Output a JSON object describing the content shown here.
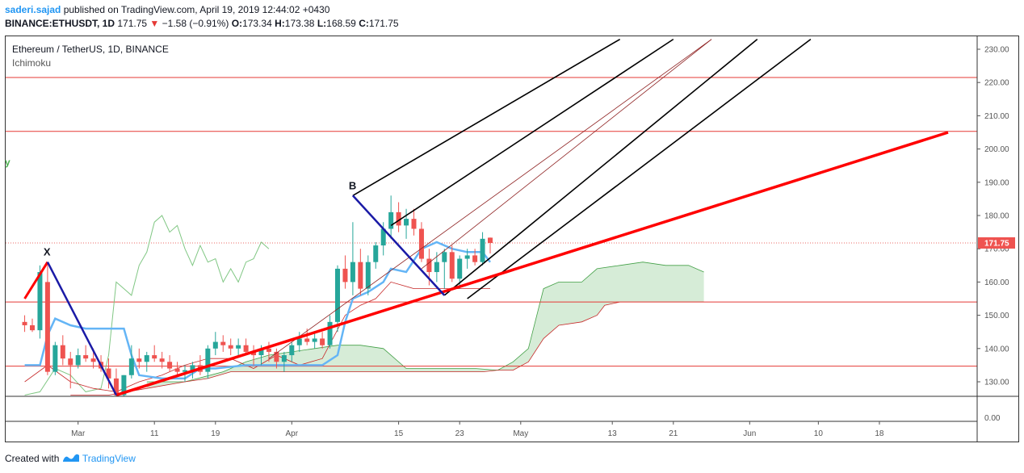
{
  "header": {
    "author": "saderi.sajad",
    "published_text": " published on TradingView.com, April 19, 2019 12:44:02 +0430",
    "symbol": "BINANCE:ETHUSDT, 1D",
    "last": "171.75",
    "change": "−1.58 (−0.91%)",
    "open_label": "O:",
    "open": "173.34",
    "high_label": "H:",
    "high": "173.38",
    "low_label": "L:",
    "low": "168.59",
    "close_label": "C:",
    "close": "171.75"
  },
  "legend": {
    "title": "Ethereum / TetherUS, 1D, BINANCE",
    "indicator": "Ichimoku",
    "stray": "y"
  },
  "footer": {
    "created_with": "Created with",
    "brand": "TradingView"
  },
  "colors": {
    "up": "#26a69a",
    "down": "#ef5350",
    "tenkan": "#64b5f6",
    "kijun_span_b": "#c62828",
    "chikou": "#81c784",
    "cloud_green": "#c8e6c9",
    "cloud_red": "#ffcdd2",
    "fork": "#000000",
    "trend": "#ff0000",
    "xab": "#1a1aa6"
  },
  "chart_data": {
    "type": "candlestick",
    "title": "Ethereum / TetherUS, 1D, BINANCE",
    "ylim": [
      126,
      233
    ],
    "y_ticks": [
      "230.00",
      "220.00",
      "210.00",
      "200.00",
      "190.00",
      "180.00",
      "170.00",
      "160.00",
      "150.00",
      "140.00",
      "130.00"
    ],
    "volume_tick": "0.00",
    "x_tick_labels": [
      "Mar",
      "11",
      "19",
      "Apr",
      "15",
      "23",
      "May",
      "13",
      "21",
      "Jun",
      "10",
      "18"
    ],
    "x_tick_days": [
      6,
      16,
      24,
      34,
      48,
      56,
      64,
      76,
      84,
      94,
      103,
      111
    ],
    "last_price_label": "171.75",
    "horizontal_levels": [
      221.5,
      205.3,
      154.0,
      134.7
    ],
    "pattern_labels": [
      {
        "text": "X",
        "day": 2,
        "price": 166
      },
      {
        "text": "B",
        "day": 42,
        "price": 186
      }
    ],
    "candles": [
      [
        -1,
        148,
        150,
        145,
        147
      ],
      [
        0,
        147,
        149,
        145,
        145.5
      ],
      [
        1,
        145.5,
        165,
        143,
        163
      ],
      [
        2,
        160,
        166,
        132,
        133
      ],
      [
        3,
        133,
        142,
        132,
        141
      ],
      [
        4,
        141,
        144,
        135,
        137
      ],
      [
        5,
        137,
        139,
        128,
        135
      ],
      [
        6,
        135,
        140,
        134,
        138
      ],
      [
        7,
        138,
        141,
        136,
        137
      ],
      [
        8,
        137,
        140,
        134,
        136
      ],
      [
        9,
        136,
        138,
        133,
        134
      ],
      [
        10,
        134,
        137,
        128,
        131
      ],
      [
        11,
        131,
        134,
        125,
        126
      ],
      [
        12,
        126,
        132,
        125,
        132
      ],
      [
        13,
        132,
        141,
        131,
        137
      ],
      [
        14,
        137,
        140,
        134,
        136
      ],
      [
        15,
        136,
        139,
        133,
        138
      ],
      [
        16,
        138,
        141,
        136,
        137
      ],
      [
        17,
        137,
        139,
        134,
        136
      ],
      [
        18,
        136,
        138,
        133,
        134
      ],
      [
        19,
        134,
        136,
        132,
        133
      ],
      [
        20,
        133,
        135,
        130,
        133.5
      ],
      [
        21,
        133.5,
        136,
        131,
        135
      ],
      [
        22,
        135,
        138,
        132,
        133
      ],
      [
        23,
        133,
        141,
        131,
        140
      ],
      [
        24,
        140,
        145,
        138,
        142
      ],
      [
        25,
        142,
        144,
        139,
        141
      ],
      [
        26,
        141,
        143,
        138,
        140
      ],
      [
        27,
        140,
        143,
        138,
        141
      ],
      [
        28,
        141,
        143,
        138,
        139
      ],
      [
        29,
        139,
        141,
        135,
        138
      ],
      [
        30,
        138,
        141,
        135,
        140
      ],
      [
        31,
        140,
        142,
        136,
        139
      ],
      [
        32,
        139,
        140,
        134,
        136
      ],
      [
        33,
        136,
        139,
        133,
        138
      ],
      [
        34,
        138,
        142,
        136,
        141
      ],
      [
        35,
        141,
        145,
        139,
        143
      ],
      [
        36,
        143,
        146,
        141,
        142
      ],
      [
        37,
        142,
        145,
        140,
        143
      ],
      [
        38,
        143,
        145,
        140,
        141
      ],
      [
        39,
        141,
        150,
        140,
        148
      ],
      [
        40,
        148,
        165,
        145,
        164
      ],
      [
        41,
        164,
        168,
        158,
        160
      ],
      [
        42,
        160,
        178,
        156,
        166
      ],
      [
        43,
        166,
        170,
        156,
        158
      ],
      [
        44,
        158,
        168,
        156,
        166
      ],
      [
        45,
        166,
        172,
        164,
        171
      ],
      [
        46,
        171,
        178,
        168,
        176
      ],
      [
        47,
        176,
        186,
        173,
        181
      ],
      [
        48,
        181,
        184,
        175,
        177
      ],
      [
        49,
        177,
        182,
        173,
        179
      ],
      [
        50,
        179,
        182,
        174,
        176
      ],
      [
        51,
        176,
        178,
        166,
        167
      ],
      [
        52,
        167,
        170,
        159,
        163
      ],
      [
        53,
        163,
        169,
        160,
        166
      ],
      [
        54,
        166,
        170,
        158,
        169
      ],
      [
        55,
        169,
        171,
        160,
        161
      ],
      [
        56,
        161,
        168,
        158,
        167
      ],
      [
        57,
        167,
        170,
        164,
        168
      ],
      [
        58,
        168,
        170,
        165,
        166
      ],
      [
        59,
        166,
        175,
        165,
        173
      ],
      [
        60,
        173.34,
        173.38,
        168.59,
        171.75
      ]
    ],
    "tenkan_sen": [
      [
        -1,
        135
      ],
      [
        1,
        135
      ],
      [
        2,
        144
      ],
      [
        3,
        149
      ],
      [
        5,
        147
      ],
      [
        7,
        146
      ],
      [
        9,
        146
      ],
      [
        10,
        146
      ],
      [
        12,
        146
      ],
      [
        13,
        138
      ],
      [
        14,
        132
      ],
      [
        17,
        131
      ],
      [
        20,
        131
      ],
      [
        22,
        134
      ],
      [
        24,
        134
      ],
      [
        28,
        135
      ],
      [
        32,
        135
      ],
      [
        34,
        135
      ],
      [
        38,
        135
      ],
      [
        40,
        138
      ],
      [
        41,
        148
      ],
      [
        42,
        155
      ],
      [
        44,
        157
      ],
      [
        46,
        160
      ],
      [
        47,
        164
      ],
      [
        49,
        163
      ],
      [
        51,
        170
      ],
      [
        53,
        172
      ],
      [
        55,
        170
      ],
      [
        57,
        169
      ],
      [
        59,
        169
      ],
      [
        60,
        166
      ]
    ],
    "kijun_sen": [
      [
        -1,
        139
      ],
      [
        1,
        142
      ],
      [
        3,
        136
      ],
      [
        5,
        131
      ],
      [
        8,
        129
      ],
      [
        11,
        126
      ],
      [
        13,
        130
      ],
      [
        15,
        133
      ],
      [
        17,
        136
      ],
      [
        20,
        141
      ],
      [
        23,
        144
      ],
      [
        26,
        144
      ],
      [
        28,
        140
      ],
      [
        30,
        138
      ],
      [
        32,
        137
      ],
      [
        34,
        138
      ],
      [
        36,
        142
      ],
      [
        38,
        144
      ],
      [
        40,
        147
      ],
      [
        42,
        152
      ],
      [
        44,
        153
      ],
      [
        46,
        157
      ],
      [
        48,
        157
      ],
      [
        50,
        158
      ],
      [
        52,
        158
      ],
      [
        54,
        158
      ],
      [
        56,
        158
      ],
      [
        58,
        158
      ],
      [
        60,
        158
      ]
    ],
    "chikou_span": [
      [
        -1,
        126
      ],
      [
        1,
        127
      ],
      [
        3,
        134
      ],
      [
        5,
        132
      ],
      [
        7,
        127
      ],
      [
        9,
        128
      ],
      [
        10,
        138
      ],
      [
        11,
        160
      ],
      [
        12,
        158
      ],
      [
        13,
        156
      ],
      [
        14,
        165
      ],
      [
        15,
        169
      ],
      [
        16,
        178
      ],
      [
        17,
        180
      ],
      [
        18,
        175
      ],
      [
        19,
        177
      ],
      [
        20,
        170
      ],
      [
        21,
        165
      ],
      [
        22,
        171
      ],
      [
        23,
        166
      ],
      [
        24,
        167
      ],
      [
        25,
        160
      ],
      [
        26,
        164
      ],
      [
        27,
        160
      ],
      [
        28,
        166
      ],
      [
        29,
        167
      ],
      [
        30,
        172
      ],
      [
        31,
        170
      ]
    ],
    "senkou_span_a": [
      [
        15,
        130
      ],
      [
        20,
        130
      ],
      [
        25,
        133
      ],
      [
        28,
        136
      ],
      [
        31,
        138
      ],
      [
        34,
        139
      ],
      [
        37,
        140
      ],
      [
        40,
        141
      ],
      [
        43,
        141
      ],
      [
        46,
        140
      ],
      [
        49,
        134
      ],
      [
        52,
        134
      ],
      [
        55,
        134
      ],
      [
        58,
        134
      ],
      [
        61,
        133.5
      ],
      [
        63,
        136
      ],
      [
        65,
        140
      ],
      [
        67,
        158
      ],
      [
        69,
        160
      ],
      [
        72,
        160
      ],
      [
        74,
        164
      ],
      [
        77,
        165
      ],
      [
        80,
        166
      ],
      [
        83,
        165
      ],
      [
        86,
        165
      ],
      [
        88,
        163
      ]
    ],
    "senkou_span_b": [
      [
        5,
        126
      ],
      [
        10,
        126
      ],
      [
        15,
        128
      ],
      [
        20,
        130
      ],
      [
        23,
        131
      ],
      [
        26,
        133
      ],
      [
        29,
        133
      ],
      [
        32,
        133
      ],
      [
        35,
        133
      ],
      [
        38,
        133
      ],
      [
        41,
        133
      ],
      [
        44,
        133
      ],
      [
        47,
        133
      ],
      [
        50,
        133
      ],
      [
        53,
        133
      ],
      [
        56,
        133
      ],
      [
        59,
        133
      ],
      [
        61,
        133.5
      ],
      [
        63,
        133.5
      ],
      [
        65,
        136
      ],
      [
        67,
        143
      ],
      [
        69,
        147
      ],
      [
        72,
        148
      ],
      [
        74,
        150
      ],
      [
        75,
        153
      ],
      [
        77,
        154
      ],
      [
        80,
        154
      ],
      [
        83,
        154
      ],
      [
        86,
        154
      ],
      [
        88,
        154
      ]
    ],
    "kijun_overlay_red": [
      [
        -1,
        130
      ],
      [
        2,
        135
      ],
      [
        5,
        130
      ],
      [
        8,
        128
      ],
      [
        11,
        127
      ],
      [
        14,
        130
      ],
      [
        17,
        132
      ],
      [
        20,
        135
      ],
      [
        23,
        137
      ],
      [
        26,
        137
      ],
      [
        29,
        134
      ],
      [
        32,
        138
      ],
      [
        35,
        135
      ],
      [
        38,
        137
      ],
      [
        41,
        150
      ],
      [
        43,
        153
      ],
      [
        45,
        155
      ],
      [
        47,
        160
      ],
      [
        50,
        158
      ],
      [
        53,
        158
      ],
      [
        56,
        158
      ],
      [
        60,
        158
      ]
    ],
    "pitchfork_lines": [
      {
        "from": [
          42,
          186
        ],
        "to": [
          77,
          233
        ],
        "style": "black"
      },
      {
        "from": [
          47,
          177
        ],
        "to": [
          84,
          233
        ],
        "style": "black"
      },
      {
        "from": [
          51,
          164
        ],
        "to": [
          89,
          233
        ],
        "style": "thin-red"
      },
      {
        "from": [
          54,
          156
        ],
        "to": [
          95,
          233
        ],
        "style": "black"
      },
      {
        "from": [
          57,
          155
        ],
        "to": [
          102,
          233
        ],
        "style": "black"
      }
    ],
    "median_thin_line": {
      "from": [
        31,
        137
      ],
      "to": [
        89,
        233
      ]
    },
    "trend_line": {
      "from": [
        11,
        126
      ],
      "to": [
        120,
        205
      ]
    },
    "x_leg": {
      "from": [
        -1,
        155
      ],
      "to": [
        2,
        166
      ]
    },
    "xa_leg": {
      "from": [
        2,
        166
      ],
      "to": [
        11,
        126
      ]
    },
    "ab_leg": {
      "from": [
        42,
        186
      ],
      "to": [
        54,
        156
      ]
    }
  }
}
